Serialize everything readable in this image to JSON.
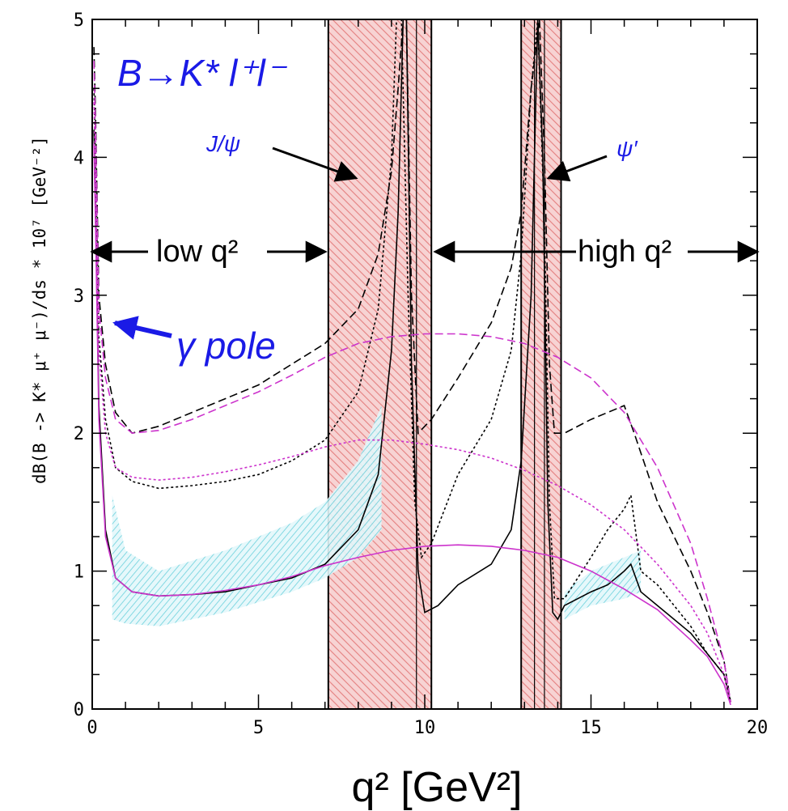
{
  "chart_data": {
    "type": "line",
    "xlabel": "q² [GeV²]",
    "ylabel": "dB(B -> K* μ⁺ μ⁻)/ds * 10⁷ [GeV⁻²]",
    "xlim": [
      0,
      20
    ],
    "ylim": [
      0,
      5
    ],
    "x_ticks": [
      "0",
      "5",
      "10",
      "15",
      "20"
    ],
    "y_ticks": [
      "0",
      "1",
      "2",
      "3",
      "4",
      "5"
    ],
    "annotations": {
      "decay": "B→K* l⁺l⁻",
      "jpsi": "J/ψ",
      "psi2s": "ψ′",
      "low_q2": "low q²",
      "high_q2": "high q²",
      "gamma_pole": "γ pole"
    },
    "veto_bands": [
      {
        "label": "J/ψ",
        "xmin": 7.1,
        "xmax": 10.2
      },
      {
        "label": "ψ′",
        "xmin": 12.9,
        "xmax": 14.1
      }
    ],
    "uncertainty_band": {
      "x": [
        0.6,
        1,
        2,
        4,
        6,
        7,
        8,
        8.7
      ],
      "lower": [
        0.65,
        0.62,
        0.6,
        0.7,
        0.85,
        0.95,
        1.1,
        1.3
      ],
      "upper": [
        1.55,
        1.15,
        1.0,
        1.15,
        1.35,
        1.5,
        1.8,
        2.2
      ],
      "x_high": [
        14.2,
        15,
        16,
        16.5
      ],
      "lower_high": [
        0.65,
        0.75,
        0.8,
        0.85
      ],
      "upper_high": [
        0.85,
        1.0,
        1.1,
        1.15
      ]
    },
    "series": [
      {
        "style": "dashed-black",
        "x": [
          0.05,
          0.1,
          0.2,
          0.4,
          0.7,
          1.2,
          2,
          3,
          4,
          5,
          6,
          7,
          8,
          8.6,
          9,
          9.2,
          9.35,
          9.45,
          9.6,
          9.8,
          10.2,
          11,
          12,
          12.6,
          12.9,
          13.2,
          13.45,
          13.6,
          13.75,
          13.9,
          14.2,
          15,
          15.5,
          16,
          16.3,
          17,
          18,
          18.5,
          19,
          19.2
        ],
        "y": [
          4.8,
          4.3,
          3.0,
          2.5,
          2.15,
          2.0,
          2.05,
          2.15,
          2.25,
          2.35,
          2.5,
          2.65,
          2.9,
          3.3,
          3.9,
          4.5,
          5.0,
          5.0,
          3.0,
          2.0,
          2.1,
          2.4,
          2.8,
          3.2,
          3.6,
          4.5,
          5.0,
          4.0,
          2.5,
          2.0,
          2.0,
          2.1,
          2.15,
          2.2,
          2.0,
          1.5,
          1.0,
          0.7,
          0.35,
          0.05
        ]
      },
      {
        "style": "dotted-black",
        "x": [
          0.05,
          0.1,
          0.2,
          0.4,
          0.7,
          1.2,
          2,
          3,
          4,
          5,
          6,
          7,
          8,
          8.6,
          9,
          9.15,
          9.3,
          9.5,
          9.7,
          9.9,
          10.2,
          11,
          12,
          12.6,
          12.9,
          13.2,
          13.4,
          13.6,
          13.75,
          13.9,
          14.2,
          15,
          15.5,
          16,
          16.2,
          16.5,
          17,
          18,
          18.5,
          19,
          19.2
        ],
        "y": [
          4.5,
          4.0,
          2.7,
          2.1,
          1.75,
          1.65,
          1.6,
          1.62,
          1.65,
          1.7,
          1.8,
          1.95,
          2.3,
          2.9,
          4.0,
          5.0,
          5.0,
          3.0,
          1.5,
          1.1,
          1.2,
          1.7,
          2.1,
          2.6,
          3.3,
          4.5,
          5.0,
          3.5,
          1.5,
          0.8,
          0.8,
          1.1,
          1.3,
          1.45,
          1.55,
          1.0,
          0.9,
          0.6,
          0.4,
          0.25,
          0.05
        ]
      },
      {
        "style": "solid-black",
        "x": [
          0.05,
          0.1,
          0.2,
          0.4,
          0.7,
          1.2,
          2,
          3,
          4,
          5,
          6,
          7,
          8,
          8.6,
          9,
          9.2,
          9.35,
          9.45,
          9.6,
          9.8,
          10.0,
          10.4,
          11,
          12,
          12.6,
          12.9,
          13.2,
          13.4,
          13.55,
          13.7,
          13.85,
          14.0,
          14.2,
          15,
          15.5,
          16,
          16.2,
          16.5,
          17,
          18,
          18.5,
          19,
          19.2
        ],
        "y": [
          4.2,
          3.6,
          2.2,
          1.3,
          0.95,
          0.85,
          0.82,
          0.83,
          0.85,
          0.9,
          0.95,
          1.05,
          1.3,
          1.7,
          2.6,
          3.6,
          5.0,
          5.0,
          2.5,
          1.0,
          0.7,
          0.75,
          0.9,
          1.05,
          1.3,
          1.8,
          3.0,
          5.0,
          4.0,
          1.5,
          0.7,
          0.65,
          0.75,
          0.85,
          0.9,
          1.0,
          1.05,
          0.85,
          0.75,
          0.55,
          0.4,
          0.25,
          0.05
        ]
      },
      {
        "style": "dashed-magenta",
        "x": [
          0.05,
          0.1,
          0.2,
          0.4,
          0.7,
          1.2,
          2,
          3,
          4,
          5,
          6,
          7,
          8,
          9,
          10,
          11,
          12,
          13,
          14,
          15,
          16,
          17,
          18,
          18.5,
          19,
          19.2
        ],
        "y": [
          4.7,
          4.2,
          2.9,
          2.4,
          2.1,
          2.0,
          2.02,
          2.1,
          2.2,
          2.3,
          2.42,
          2.55,
          2.65,
          2.7,
          2.72,
          2.72,
          2.7,
          2.65,
          2.55,
          2.4,
          2.15,
          1.75,
          1.2,
          0.8,
          0.35,
          0.05
        ]
      },
      {
        "style": "dotted-magenta",
        "x": [
          0.05,
          0.1,
          0.2,
          0.4,
          0.7,
          1.2,
          2,
          3,
          4,
          5,
          6,
          7,
          8,
          9,
          10,
          11,
          12,
          13,
          14,
          15,
          16,
          17,
          18,
          18.5,
          19,
          19.2
        ],
        "y": [
          4.4,
          3.9,
          2.6,
          2.0,
          1.75,
          1.68,
          1.66,
          1.68,
          1.72,
          1.77,
          1.83,
          1.9,
          1.95,
          1.95,
          1.92,
          1.88,
          1.82,
          1.73,
          1.62,
          1.48,
          1.3,
          1.05,
          0.75,
          0.55,
          0.25,
          0.05
        ]
      },
      {
        "style": "solid-magenta",
        "x": [
          0.05,
          0.1,
          0.2,
          0.4,
          0.7,
          1.2,
          2,
          3,
          4,
          5,
          6,
          7,
          8,
          9,
          10,
          11,
          12,
          13,
          14,
          15,
          16,
          17,
          18,
          18.5,
          19,
          19.2
        ],
        "y": [
          4.1,
          3.5,
          2.1,
          1.25,
          0.95,
          0.85,
          0.82,
          0.83,
          0.86,
          0.9,
          0.96,
          1.04,
          1.1,
          1.15,
          1.18,
          1.19,
          1.18,
          1.15,
          1.1,
          1.0,
          0.87,
          0.72,
          0.5,
          0.38,
          0.18,
          0.03
        ]
      }
    ]
  }
}
